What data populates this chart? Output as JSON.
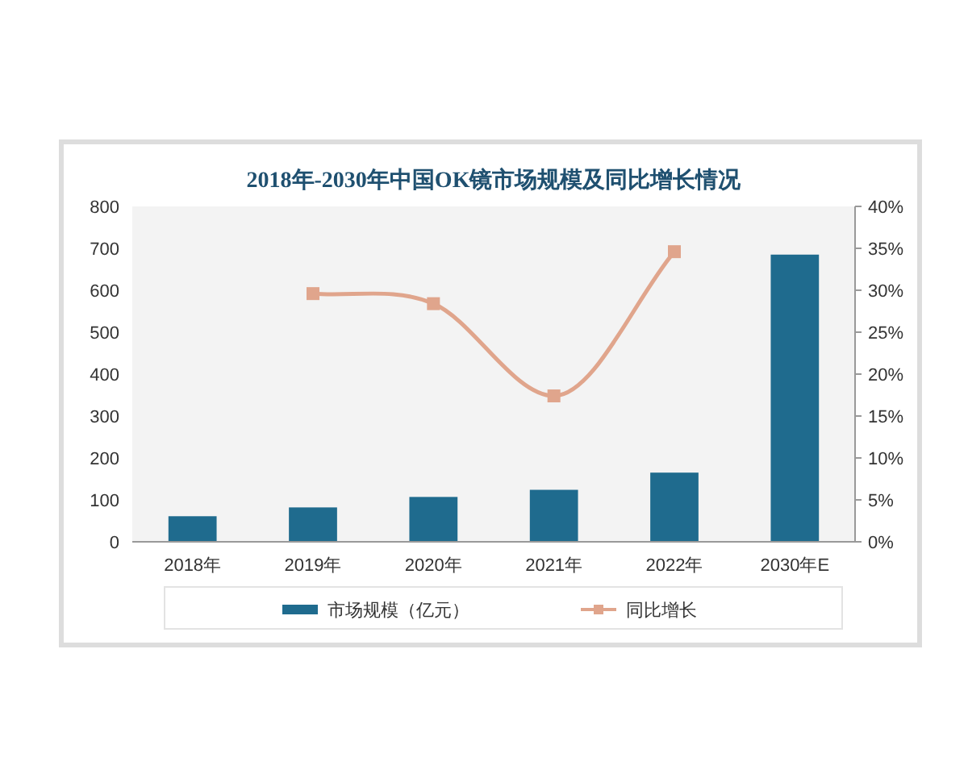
{
  "chart_data": {
    "type": "bar",
    "title": "2018年-2030年中国OK镜市场规模及同比增长情况",
    "categories": [
      "2018年",
      "2019年",
      "2020年",
      "2021年",
      "2022年",
      "2030年E"
    ],
    "series": [
      {
        "name": "市场规模（亿元）",
        "color": "#1f6b8e",
        "values": [
          61,
          82,
          107,
          124,
          165,
          685
        ]
      },
      {
        "name": "同比增长",
        "type": "line",
        "axis": "y2",
        "color": "#e0a58c",
        "marker": "square",
        "values": [
          null,
          29.6,
          28.4,
          17.4,
          34.6,
          null
        ]
      }
    ],
    "ylim": [
      0,
      800
    ],
    "yticks": [
      0,
      100,
      200,
      300,
      400,
      500,
      600,
      700,
      800
    ],
    "y2lim": [
      0,
      40
    ],
    "y2ticks": [
      {
        "value": 0,
        "label": "0%"
      },
      {
        "value": 5,
        "label": "5%"
      },
      {
        "value": 10,
        "label": "10%"
      },
      {
        "value": 15,
        "label": "15%"
      },
      {
        "value": 20,
        "label": "20%"
      },
      {
        "value": 25,
        "label": "25%"
      },
      {
        "value": 30,
        "label": "30%"
      },
      {
        "value": 35,
        "label": "35%"
      },
      {
        "value": 40,
        "label": "40%"
      }
    ],
    "legend": "bottom",
    "grid": false
  }
}
